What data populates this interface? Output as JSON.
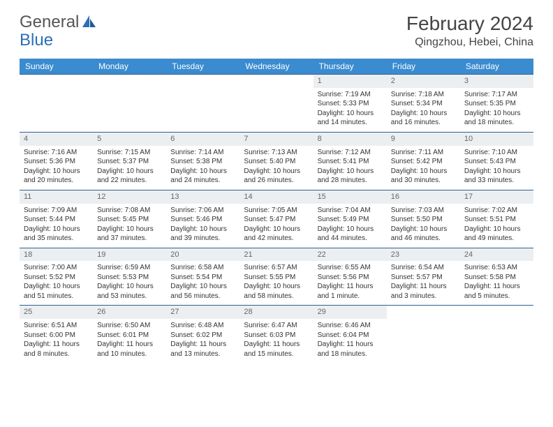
{
  "logo": {
    "text1": "General",
    "text2": "Blue"
  },
  "title": "February 2024",
  "location": "Qingzhou, Hebei, China",
  "colors": {
    "header_bg": "#3a8bcf",
    "header_text": "#ffffff",
    "row_border": "#2f5f8f",
    "daynum_bg": "#eceff1",
    "daynum_text": "#666666",
    "body_text": "#333333",
    "title_text": "#444444",
    "logo_gray": "#555555",
    "logo_blue": "#2c6fb5"
  },
  "typography": {
    "title_fontsize": 28,
    "location_fontsize": 16,
    "header_fontsize": 12,
    "cell_fontsize": 10,
    "daynum_fontsize": 11
  },
  "days": [
    "Sunday",
    "Monday",
    "Tuesday",
    "Wednesday",
    "Thursday",
    "Friday",
    "Saturday"
  ],
  "weeks": [
    [
      null,
      null,
      null,
      null,
      {
        "n": "1",
        "sr": "Sunrise: 7:19 AM",
        "ss": "Sunset: 5:33 PM",
        "d1": "Daylight: 10 hours",
        "d2": "and 14 minutes."
      },
      {
        "n": "2",
        "sr": "Sunrise: 7:18 AM",
        "ss": "Sunset: 5:34 PM",
        "d1": "Daylight: 10 hours",
        "d2": "and 16 minutes."
      },
      {
        "n": "3",
        "sr": "Sunrise: 7:17 AM",
        "ss": "Sunset: 5:35 PM",
        "d1": "Daylight: 10 hours",
        "d2": "and 18 minutes."
      }
    ],
    [
      {
        "n": "4",
        "sr": "Sunrise: 7:16 AM",
        "ss": "Sunset: 5:36 PM",
        "d1": "Daylight: 10 hours",
        "d2": "and 20 minutes."
      },
      {
        "n": "5",
        "sr": "Sunrise: 7:15 AM",
        "ss": "Sunset: 5:37 PM",
        "d1": "Daylight: 10 hours",
        "d2": "and 22 minutes."
      },
      {
        "n": "6",
        "sr": "Sunrise: 7:14 AM",
        "ss": "Sunset: 5:38 PM",
        "d1": "Daylight: 10 hours",
        "d2": "and 24 minutes."
      },
      {
        "n": "7",
        "sr": "Sunrise: 7:13 AM",
        "ss": "Sunset: 5:40 PM",
        "d1": "Daylight: 10 hours",
        "d2": "and 26 minutes."
      },
      {
        "n": "8",
        "sr": "Sunrise: 7:12 AM",
        "ss": "Sunset: 5:41 PM",
        "d1": "Daylight: 10 hours",
        "d2": "and 28 minutes."
      },
      {
        "n": "9",
        "sr": "Sunrise: 7:11 AM",
        "ss": "Sunset: 5:42 PM",
        "d1": "Daylight: 10 hours",
        "d2": "and 30 minutes."
      },
      {
        "n": "10",
        "sr": "Sunrise: 7:10 AM",
        "ss": "Sunset: 5:43 PM",
        "d1": "Daylight: 10 hours",
        "d2": "and 33 minutes."
      }
    ],
    [
      {
        "n": "11",
        "sr": "Sunrise: 7:09 AM",
        "ss": "Sunset: 5:44 PM",
        "d1": "Daylight: 10 hours",
        "d2": "and 35 minutes."
      },
      {
        "n": "12",
        "sr": "Sunrise: 7:08 AM",
        "ss": "Sunset: 5:45 PM",
        "d1": "Daylight: 10 hours",
        "d2": "and 37 minutes."
      },
      {
        "n": "13",
        "sr": "Sunrise: 7:06 AM",
        "ss": "Sunset: 5:46 PM",
        "d1": "Daylight: 10 hours",
        "d2": "and 39 minutes."
      },
      {
        "n": "14",
        "sr": "Sunrise: 7:05 AM",
        "ss": "Sunset: 5:47 PM",
        "d1": "Daylight: 10 hours",
        "d2": "and 42 minutes."
      },
      {
        "n": "15",
        "sr": "Sunrise: 7:04 AM",
        "ss": "Sunset: 5:49 PM",
        "d1": "Daylight: 10 hours",
        "d2": "and 44 minutes."
      },
      {
        "n": "16",
        "sr": "Sunrise: 7:03 AM",
        "ss": "Sunset: 5:50 PM",
        "d1": "Daylight: 10 hours",
        "d2": "and 46 minutes."
      },
      {
        "n": "17",
        "sr": "Sunrise: 7:02 AM",
        "ss": "Sunset: 5:51 PM",
        "d1": "Daylight: 10 hours",
        "d2": "and 49 minutes."
      }
    ],
    [
      {
        "n": "18",
        "sr": "Sunrise: 7:00 AM",
        "ss": "Sunset: 5:52 PM",
        "d1": "Daylight: 10 hours",
        "d2": "and 51 minutes."
      },
      {
        "n": "19",
        "sr": "Sunrise: 6:59 AM",
        "ss": "Sunset: 5:53 PM",
        "d1": "Daylight: 10 hours",
        "d2": "and 53 minutes."
      },
      {
        "n": "20",
        "sr": "Sunrise: 6:58 AM",
        "ss": "Sunset: 5:54 PM",
        "d1": "Daylight: 10 hours",
        "d2": "and 56 minutes."
      },
      {
        "n": "21",
        "sr": "Sunrise: 6:57 AM",
        "ss": "Sunset: 5:55 PM",
        "d1": "Daylight: 10 hours",
        "d2": "and 58 minutes."
      },
      {
        "n": "22",
        "sr": "Sunrise: 6:55 AM",
        "ss": "Sunset: 5:56 PM",
        "d1": "Daylight: 11 hours",
        "d2": "and 1 minute."
      },
      {
        "n": "23",
        "sr": "Sunrise: 6:54 AM",
        "ss": "Sunset: 5:57 PM",
        "d1": "Daylight: 11 hours",
        "d2": "and 3 minutes."
      },
      {
        "n": "24",
        "sr": "Sunrise: 6:53 AM",
        "ss": "Sunset: 5:58 PM",
        "d1": "Daylight: 11 hours",
        "d2": "and 5 minutes."
      }
    ],
    [
      {
        "n": "25",
        "sr": "Sunrise: 6:51 AM",
        "ss": "Sunset: 6:00 PM",
        "d1": "Daylight: 11 hours",
        "d2": "and 8 minutes."
      },
      {
        "n": "26",
        "sr": "Sunrise: 6:50 AM",
        "ss": "Sunset: 6:01 PM",
        "d1": "Daylight: 11 hours",
        "d2": "and 10 minutes."
      },
      {
        "n": "27",
        "sr": "Sunrise: 6:48 AM",
        "ss": "Sunset: 6:02 PM",
        "d1": "Daylight: 11 hours",
        "d2": "and 13 minutes."
      },
      {
        "n": "28",
        "sr": "Sunrise: 6:47 AM",
        "ss": "Sunset: 6:03 PM",
        "d1": "Daylight: 11 hours",
        "d2": "and 15 minutes."
      },
      {
        "n": "29",
        "sr": "Sunrise: 6:46 AM",
        "ss": "Sunset: 6:04 PM",
        "d1": "Daylight: 11 hours",
        "d2": "and 18 minutes."
      },
      null,
      null
    ]
  ]
}
